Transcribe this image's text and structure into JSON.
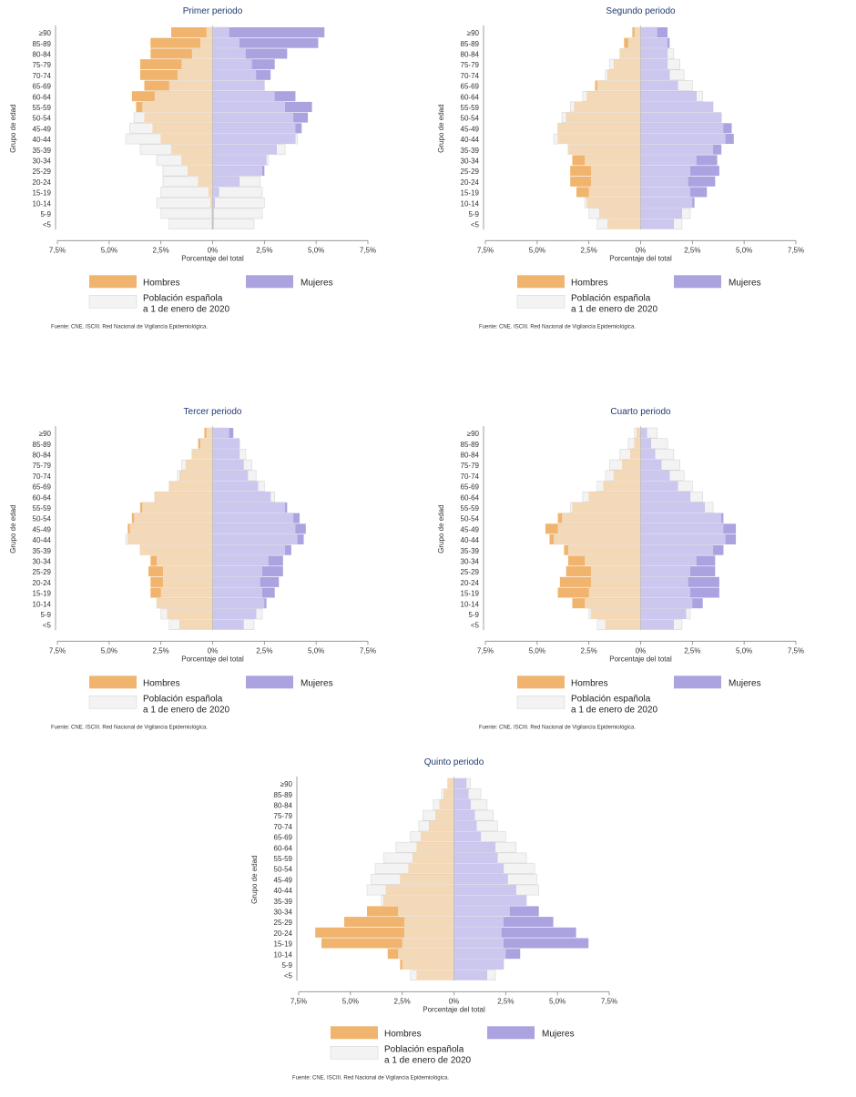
{
  "chart_data": [
    {
      "type": "bar",
      "title": "Primer periodo",
      "xlabel": "Porcentaje del total",
      "ylabel": "Grupo de edad",
      "xlim": [
        -7.5,
        7.5
      ],
      "categories": [
        "≥90",
        "85-89",
        "80-84",
        "75-79",
        "70-74",
        "65-69",
        "60-64",
        "55-59",
        "50-54",
        "45-49",
        "40-44",
        "35-39",
        "30-34",
        "25-29",
        "20-24",
        "15-19",
        "10-14",
        "5-9",
        "<5"
      ],
      "series": [
        {
          "name": "Hombres",
          "values": [
            2.0,
            3.0,
            3.0,
            3.5,
            3.5,
            3.3,
            3.9,
            3.7,
            3.3,
            2.9,
            2.5,
            2.0,
            1.5,
            1.2,
            0.7,
            0.2,
            0.1,
            0.05,
            0.05
          ]
        },
        {
          "name": "Mujeres",
          "values": [
            5.4,
            5.1,
            3.6,
            3.0,
            2.8,
            2.5,
            4.0,
            4.8,
            4.6,
            4.3,
            4.0,
            3.1,
            2.6,
            2.5,
            1.3,
            0.3,
            0.1,
            0.05,
            0.05
          ]
        },
        {
          "name": "Población española a 1 de enero de 2020",
          "values_hombres": [
            0.3,
            0.6,
            1.0,
            1.5,
            1.7,
            2.1,
            2.8,
            3.4,
            3.8,
            4.0,
            4.2,
            3.5,
            2.7,
            2.4,
            2.4,
            2.5,
            2.7,
            2.5,
            2.1
          ],
          "values_mujeres": [
            0.8,
            1.3,
            1.6,
            1.9,
            2.1,
            2.5,
            3.0,
            3.5,
            3.9,
            4.0,
            4.1,
            3.5,
            2.7,
            2.4,
            2.3,
            2.4,
            2.5,
            2.4,
            2.0
          ]
        }
      ],
      "xticks": [
        "7,5%",
        "5,0%",
        "2,5%",
        "0%",
        "2,5%",
        "5,0%",
        "7,5%"
      ],
      "legend": "bottom",
      "source": "Fuente: CNE. ISCIII. Red Nacional de Vigilancia Epidemiológica."
    },
    {
      "type": "bar",
      "title": "Segundo periodo",
      "xlabel": "Porcentaje del total",
      "ylabel": "Grupo de edad",
      "xlim": [
        -7.5,
        7.5
      ],
      "categories": [
        "≥90",
        "85-89",
        "80-84",
        "75-79",
        "70-74",
        "65-69",
        "60-64",
        "55-59",
        "50-54",
        "45-49",
        "40-44",
        "35-39",
        "30-34",
        "25-29",
        "20-24",
        "15-19",
        "10-14",
        "5-9",
        "<5"
      ],
      "series": [
        {
          "name": "Hombres",
          "values": [
            0.4,
            0.8,
            1.0,
            1.3,
            1.6,
            2.2,
            2.6,
            3.2,
            3.6,
            4.0,
            4.0,
            3.5,
            3.3,
            3.4,
            3.4,
            3.1,
            2.6,
            2.0,
            1.6
          ]
        },
        {
          "name": "Mujeres",
          "values": [
            1.3,
            1.4,
            1.3,
            1.3,
            1.4,
            1.8,
            2.7,
            3.5,
            3.9,
            4.4,
            4.5,
            3.9,
            3.7,
            3.8,
            3.6,
            3.2,
            2.6,
            2.0,
            1.6
          ]
        },
        {
          "name": "Población española a 1 de enero de 2020",
          "values_hombres": [
            0.3,
            0.6,
            1.0,
            1.5,
            1.7,
            2.1,
            2.8,
            3.4,
            3.8,
            4.0,
            4.2,
            3.5,
            2.7,
            2.4,
            2.4,
            2.5,
            2.7,
            2.5,
            2.1
          ],
          "values_mujeres": [
            0.8,
            1.3,
            1.6,
            1.9,
            2.1,
            2.5,
            3.0,
            3.5,
            3.9,
            4.0,
            4.1,
            3.5,
            2.7,
            2.4,
            2.3,
            2.4,
            2.5,
            2.4,
            2.0
          ]
        }
      ],
      "xticks": [
        "7,5%",
        "5,0%",
        "2,5%",
        "0%",
        "2,5%",
        "5,0%",
        "7,5%"
      ],
      "legend": "bottom",
      "source": "Fuente: CNE. ISCIII. Red Nacional de Vigilancia Epidemiológica."
    },
    {
      "type": "bar",
      "title": "Tercer periodo",
      "xlabel": "Porcentaje del total",
      "ylabel": "Grupo de edad",
      "xlim": [
        -7.5,
        7.5
      ],
      "categories": [
        "≥90",
        "85-89",
        "80-84",
        "75-79",
        "70-74",
        "65-69",
        "60-64",
        "55-59",
        "50-54",
        "45-49",
        "40-44",
        "35-39",
        "30-34",
        "25-29",
        "20-24",
        "15-19",
        "10-14",
        "5-9",
        "<5"
      ],
      "series": [
        {
          "name": "Hombres",
          "values": [
            0.4,
            0.7,
            1.0,
            1.3,
            1.6,
            2.1,
            2.8,
            3.5,
            3.9,
            4.1,
            4.1,
            3.5,
            3.0,
            3.1,
            3.0,
            3.0,
            2.7,
            2.2,
            1.6
          ]
        },
        {
          "name": "Mujeres",
          "values": [
            1.0,
            1.3,
            1.3,
            1.5,
            1.7,
            2.2,
            2.8,
            3.6,
            4.2,
            4.5,
            4.4,
            3.8,
            3.4,
            3.4,
            3.2,
            3.0,
            2.6,
            2.1,
            1.5
          ]
        },
        {
          "name": "Población española a 1 de enero de 2020",
          "values_hombres": [
            0.3,
            0.6,
            1.0,
            1.5,
            1.7,
            2.1,
            2.8,
            3.4,
            3.8,
            4.0,
            4.2,
            3.5,
            2.7,
            2.4,
            2.4,
            2.5,
            2.7,
            2.5,
            2.1
          ],
          "values_mujeres": [
            0.8,
            1.3,
            1.6,
            1.9,
            2.1,
            2.5,
            3.0,
            3.5,
            3.9,
            4.0,
            4.1,
            3.5,
            2.7,
            2.4,
            2.3,
            2.4,
            2.5,
            2.4,
            2.0
          ]
        }
      ],
      "xticks": [
        "7,5%",
        "5,0%",
        "2,5%",
        "0%",
        "2,5%",
        "5,0%",
        "7,5%"
      ],
      "legend": "bottom",
      "source": "Fuente: CNE. ISCIII. Red Nacional de Vigilancia Epidemiológica."
    },
    {
      "type": "bar",
      "title": "Cuarto periodo",
      "xlabel": "Porcentaje del total",
      "ylabel": "Grupo de edad",
      "xlim": [
        -7.5,
        7.5
      ],
      "categories": [
        "≥90",
        "85-89",
        "80-84",
        "75-79",
        "70-74",
        "65-69",
        "60-64",
        "55-59",
        "50-54",
        "45-49",
        "40-44",
        "35-39",
        "30-34",
        "25-29",
        "20-24",
        "15-19",
        "10-14",
        "5-9",
        "<5"
      ],
      "series": [
        {
          "name": "Hombres",
          "values": [
            0.2,
            0.3,
            0.5,
            0.9,
            1.3,
            1.8,
            2.5,
            3.3,
            4.0,
            4.6,
            4.4,
            3.7,
            3.5,
            3.6,
            3.9,
            4.0,
            3.3,
            2.4,
            1.7
          ]
        },
        {
          "name": "Mujeres",
          "values": [
            0.3,
            0.5,
            0.7,
            1.0,
            1.4,
            1.8,
            2.4,
            3.1,
            4.0,
            4.6,
            4.6,
            4.0,
            3.6,
            3.6,
            3.8,
            3.8,
            3.0,
            2.2,
            1.6
          ]
        },
        {
          "name": "Población española a 1 de enero de 2020",
          "values_hombres": [
            0.3,
            0.6,
            1.0,
            1.5,
            1.7,
            2.1,
            2.8,
            3.4,
            3.8,
            4.0,
            4.2,
            3.5,
            2.7,
            2.4,
            2.4,
            2.5,
            2.7,
            2.5,
            2.1
          ],
          "values_mujeres": [
            0.8,
            1.3,
            1.6,
            1.9,
            2.1,
            2.5,
            3.0,
            3.5,
            3.9,
            4.0,
            4.1,
            3.5,
            2.7,
            2.4,
            2.3,
            2.4,
            2.5,
            2.4,
            2.0
          ]
        }
      ],
      "xticks": [
        "7,5%",
        "5,0%",
        "2,5%",
        "0%",
        "2,5%",
        "5,0%",
        "7,5%"
      ],
      "legend": "bottom",
      "source": "Fuente: CNE. ISCIII. Red Nacional de Vigilancia Epidemiológica."
    },
    {
      "type": "bar",
      "title": "Quinto periodo",
      "xlabel": "Porcentaje del total",
      "ylabel": "Grupo de edad",
      "xlim": [
        -7.5,
        7.5
      ],
      "categories": [
        "≥90",
        "85-89",
        "80-84",
        "75-79",
        "70-74",
        "65-69",
        "60-64",
        "55-59",
        "50-54",
        "45-49",
        "40-44",
        "35-39",
        "30-34",
        "25-29",
        "20-24",
        "15-19",
        "10-14",
        "5-9",
        "<5"
      ],
      "series": [
        {
          "name": "Hombres",
          "values": [
            0.3,
            0.5,
            0.7,
            0.9,
            1.2,
            1.6,
            1.8,
            2.0,
            2.2,
            2.6,
            3.3,
            3.4,
            4.2,
            5.3,
            6.7,
            6.4,
            3.2,
            2.6,
            1.8
          ]
        },
        {
          "name": "Mujeres",
          "values": [
            0.6,
            0.7,
            0.8,
            1.0,
            1.1,
            1.3,
            2.0,
            2.1,
            2.4,
            2.6,
            3.0,
            3.5,
            4.1,
            4.8,
            5.9,
            6.5,
            3.2,
            2.4,
            1.6
          ]
        },
        {
          "name": "Población española a 1 de enero de 2020",
          "values_hombres": [
            0.3,
            0.6,
            1.0,
            1.5,
            1.7,
            2.1,
            2.8,
            3.4,
            3.8,
            4.0,
            4.2,
            3.5,
            2.7,
            2.4,
            2.4,
            2.5,
            2.7,
            2.5,
            2.1
          ],
          "values_mujeres": [
            0.8,
            1.3,
            1.6,
            1.9,
            2.1,
            2.5,
            3.0,
            3.5,
            3.9,
            4.0,
            4.1,
            3.5,
            2.7,
            2.4,
            2.3,
            2.4,
            2.5,
            2.4,
            2.0
          ]
        }
      ],
      "xticks": [
        "7,5%",
        "5,0%",
        "2,5%",
        "0%",
        "2,5%",
        "5,0%",
        "7,5%"
      ],
      "legend": "bottom",
      "source": "Fuente: CNE. ISCIII. Red Nacional de Vigilancia Epidemiológica."
    }
  ],
  "legend": {
    "hombres": "Hombres",
    "mujeres": "Mujeres",
    "poblacion_line1": "Población española",
    "poblacion_line2": "a 1 de enero de 2020"
  },
  "colors": {
    "hombres": "#f0b46e",
    "mujeres": "#aaa3e0",
    "pop_hombres": "#f3d9b8",
    "pop_mujeres": "#ccc7ee",
    "reference": "#f3f3f3",
    "reference_stroke": "#d8d8d8",
    "title": "#1f3b6f"
  }
}
